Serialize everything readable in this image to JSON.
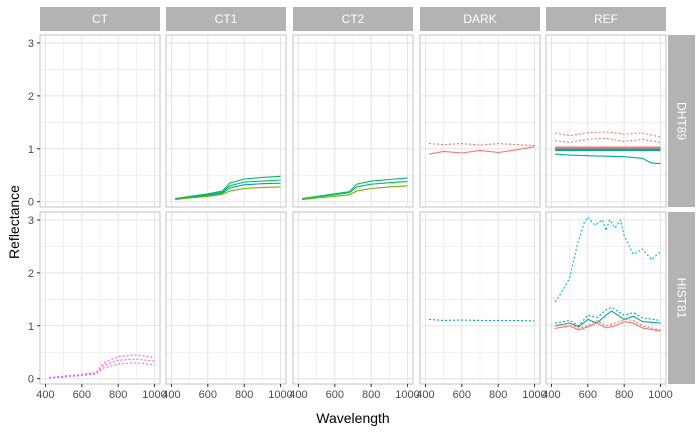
{
  "chart_data": {
    "type": "line",
    "xlabel": "Wavelength",
    "ylabel": "Reflectance",
    "col_facets": [
      "CT",
      "CT1",
      "CT2",
      "DARK",
      "REF"
    ],
    "row_facets": [
      "DHT89",
      "HIST81"
    ],
    "xlim": [
      370,
      1030
    ],
    "ylim": [
      -0.1,
      3.15
    ],
    "x_ticks": [
      400,
      600,
      800,
      1000
    ],
    "x_tick_labels": [
      "400",
      "600",
      "800",
      "1000"
    ],
    "y_ticks": [
      0,
      1,
      2,
      3
    ],
    "y_tick_labels": [
      "0",
      "1",
      "2",
      "3"
    ],
    "grid": true,
    "colors": {
      "panel_bg": "#ffffff",
      "grid": "#e3e3e3",
      "strip_bg": "#b3b3b3",
      "strip_text": "#ffffff",
      "panel_border": "#b3b3b3",
      "red": "#f8766d",
      "olive": "#7cae00",
      "green": "#00be67",
      "teal": "#00a9a3",
      "cyan": "#00bfc4",
      "purple": "#c77cff",
      "magenta": "#f564e3"
    },
    "panels": [
      {
        "row": "DHT89",
        "col": "CT",
        "series": []
      },
      {
        "row": "DHT89",
        "col": "CT1",
        "series": [
          {
            "color": "green",
            "dash": false,
            "x": [
              420,
              500,
              600,
              680,
              720,
              800,
              900,
              1000
            ],
            "y": [
              0.06,
              0.1,
              0.15,
              0.2,
              0.35,
              0.43,
              0.46,
              0.48
            ]
          },
          {
            "color": "green",
            "dash": false,
            "x": [
              420,
              500,
              600,
              680,
              720,
              800,
              900,
              1000
            ],
            "y": [
              0.05,
              0.09,
              0.13,
              0.18,
              0.3,
              0.37,
              0.39,
              0.41
            ]
          },
          {
            "color": "teal",
            "dash": false,
            "x": [
              420,
              500,
              600,
              680,
              720,
              800,
              900,
              1000
            ],
            "y": [
              0.05,
              0.08,
              0.12,
              0.16,
              0.26,
              0.32,
              0.34,
              0.35
            ]
          },
          {
            "color": "olive",
            "dash": false,
            "x": [
              420,
              500,
              600,
              680,
              720,
              800,
              900,
              1000
            ],
            "y": [
              0.04,
              0.07,
              0.1,
              0.14,
              0.2,
              0.25,
              0.27,
              0.28
            ]
          }
        ]
      },
      {
        "row": "DHT89",
        "col": "CT2",
        "series": [
          {
            "color": "green",
            "dash": false,
            "x": [
              420,
              500,
              600,
              680,
              720,
              800,
              900,
              1000
            ],
            "y": [
              0.06,
              0.1,
              0.15,
              0.19,
              0.33,
              0.39,
              0.42,
              0.45
            ]
          },
          {
            "color": "green",
            "dash": false,
            "x": [
              420,
              500,
              600,
              680,
              720,
              800,
              900,
              1000
            ],
            "y": [
              0.05,
              0.09,
              0.13,
              0.17,
              0.28,
              0.33,
              0.36,
              0.38
            ]
          },
          {
            "color": "olive",
            "dash": false,
            "x": [
              420,
              500,
              600,
              680,
              720,
              800,
              900,
              1000
            ],
            "y": [
              0.04,
              0.07,
              0.1,
              0.13,
              0.2,
              0.25,
              0.28,
              0.3
            ]
          }
        ]
      },
      {
        "row": "DHT89",
        "col": "DARK",
        "series": [
          {
            "color": "red",
            "dash": true,
            "x": [
              420,
              500,
              600,
              700,
              800,
              900,
              1000
            ],
            "y": [
              1.1,
              1.08,
              1.1,
              1.07,
              1.1,
              1.08,
              1.06
            ]
          },
          {
            "color": "red",
            "dash": false,
            "x": [
              420,
              500,
              600,
              700,
              800,
              900,
              1000
            ],
            "y": [
              0.9,
              0.95,
              0.92,
              0.97,
              0.93,
              0.98,
              1.04
            ]
          }
        ]
      },
      {
        "row": "DHT89",
        "col": "REF",
        "series": [
          {
            "color": "red",
            "dash": true,
            "x": [
              420,
              500,
              600,
              700,
              800,
              900,
              1000
            ],
            "y": [
              1.3,
              1.25,
              1.3,
              1.32,
              1.28,
              1.3,
              1.22
            ]
          },
          {
            "color": "red",
            "dash": true,
            "x": [
              420,
              500,
              600,
              700,
              800,
              900,
              1000
            ],
            "y": [
              1.15,
              1.12,
              1.18,
              1.2,
              1.14,
              1.18,
              1.12
            ]
          },
          {
            "color": "red",
            "dash": false,
            "x": [
              420,
              1000
            ],
            "y": [
              1.02,
              1.02
            ]
          },
          {
            "color": "teal",
            "dash": false,
            "x": [
              420,
              1000
            ],
            "y": [
              0.98,
              0.98
            ]
          },
          {
            "color": "teal",
            "dash": false,
            "x": [
              420,
              500,
              600,
              700,
              800,
              900,
              950,
              1000
            ],
            "y": [
              0.9,
              0.88,
              0.87,
              0.86,
              0.85,
              0.82,
              0.73,
              0.72
            ]
          }
        ]
      },
      {
        "row": "HIST81",
        "col": "CT",
        "series": [
          {
            "color": "magenta",
            "dash": true,
            "x": [
              420,
              500,
              600,
              680,
              720,
              800,
              900,
              1000
            ],
            "y": [
              0.02,
              0.05,
              0.08,
              0.12,
              0.3,
              0.42,
              0.45,
              0.4
            ]
          },
          {
            "color": "magenta",
            "dash": true,
            "x": [
              420,
              500,
              600,
              680,
              720,
              800,
              900,
              1000
            ],
            "y": [
              0.02,
              0.04,
              0.07,
              0.1,
              0.25,
              0.35,
              0.37,
              0.33
            ]
          },
          {
            "color": "purple",
            "dash": true,
            "x": [
              420,
              500,
              600,
              680,
              720,
              800,
              900,
              1000
            ],
            "y": [
              0.01,
              0.03,
              0.06,
              0.09,
              0.2,
              0.28,
              0.3,
              0.26
            ]
          }
        ]
      },
      {
        "row": "HIST81",
        "col": "CT1",
        "series": []
      },
      {
        "row": "HIST81",
        "col": "CT2",
        "series": []
      },
      {
        "row": "HIST81",
        "col": "DARK",
        "series": [
          {
            "color": "teal",
            "dash": true,
            "x": [
              420,
              500,
              600,
              700,
              800,
              900,
              1000
            ],
            "y": [
              1.12,
              1.1,
              1.11,
              1.1,
              1.1,
              1.1,
              1.09
            ]
          }
        ]
      },
      {
        "row": "HIST81",
        "col": "REF",
        "series": [
          {
            "color": "cyan",
            "dash": true,
            "x": [
              420,
              450,
              500,
              540,
              580,
              600,
              640,
              680,
              700,
              720,
              750,
              780,
              800,
              850,
              900,
              950,
              1000
            ],
            "y": [
              1.45,
              1.6,
              1.9,
              2.5,
              2.95,
              3.05,
              2.9,
              3.0,
              2.8,
              3.0,
              2.85,
              3.0,
              2.7,
              2.35,
              2.45,
              2.25,
              2.4
            ]
          },
          {
            "color": "teal",
            "dash": true,
            "x": [
              420,
              500,
              550,
              600,
              650,
              700,
              730,
              800,
              850,
              900,
              1000
            ],
            "y": [
              1.05,
              1.1,
              1.0,
              1.2,
              1.15,
              1.3,
              1.35,
              1.2,
              1.25,
              1.15,
              1.1
            ]
          },
          {
            "color": "teal",
            "dash": false,
            "x": [
              420,
              500,
              550,
              600,
              650,
              700,
              730,
              800,
              850,
              900,
              1000
            ],
            "y": [
              1.0,
              1.05,
              0.98,
              1.12,
              1.05,
              1.2,
              1.28,
              1.12,
              1.18,
              1.08,
              1.05
            ]
          },
          {
            "color": "red",
            "dash": true,
            "x": [
              420,
              500,
              550,
              600,
              650,
              700,
              750,
              800,
              850,
              900,
              1000
            ],
            "y": [
              1.0,
              1.05,
              0.95,
              1.0,
              1.1,
              1.0,
              1.05,
              1.12,
              1.1,
              1.0,
              0.92
            ]
          },
          {
            "color": "red",
            "dash": false,
            "x": [
              420,
              500,
              550,
              600,
              650,
              700,
              750,
              800,
              850,
              900,
              1000
            ],
            "y": [
              0.95,
              1.0,
              0.92,
              0.98,
              1.05,
              0.96,
              1.0,
              1.08,
              1.05,
              0.96,
              0.9
            ]
          }
        ]
      }
    ]
  }
}
